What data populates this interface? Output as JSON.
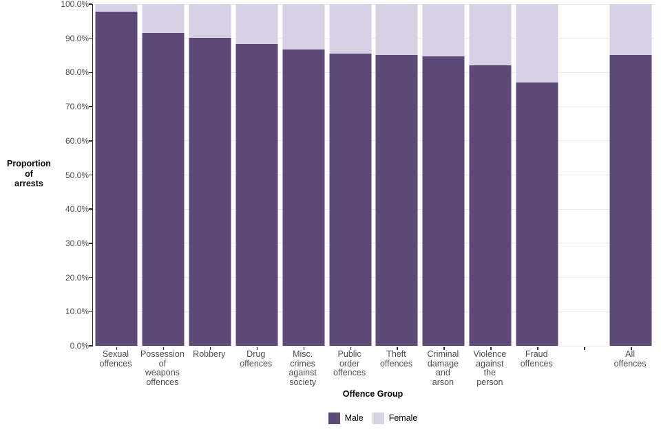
{
  "chart_data": {
    "type": "bar",
    "stacked": true,
    "orientation": "vertical",
    "title": "",
    "xlabel": "Offence Group",
    "ylabel": "Proportion\nof\narrests",
    "ylim": [
      0,
      100
    ],
    "grid": "horizontal",
    "legend_position": "bottom-center",
    "gap_slot_index": 10,
    "categories": [
      "Sexual\noffences",
      "Possession\nof\nweapons\noffences",
      "Robbery",
      "Drug\noffences",
      "Misc.\ncrimes\nagainst\nsociety",
      "Public\norder\noffences",
      "Theft\noffences",
      "Criminal\ndamage\nand\narson",
      "Violence\nagainst\nthe\nperson",
      "Fraud\noffences",
      "All\noffences"
    ],
    "series": [
      {
        "name": "Male",
        "color": "#5d4a76",
        "values": [
          97.7,
          91.6,
          90.1,
          88.4,
          86.7,
          85.6,
          85.1,
          84.8,
          82.1,
          77.0,
          85.1
        ]
      },
      {
        "name": "Female",
        "color": "#d8d0e4",
        "values": [
          2.3,
          8.4,
          9.9,
          11.6,
          13.3,
          14.4,
          14.9,
          15.2,
          17.9,
          23.0,
          14.9
        ]
      }
    ],
    "yticks": [
      {
        "value": 0,
        "label": "0.0%"
      },
      {
        "value": 10,
        "label": "10.0%"
      },
      {
        "value": 20,
        "label": "20.0%"
      },
      {
        "value": 30,
        "label": "30.0%"
      },
      {
        "value": 40,
        "label": "40.0%"
      },
      {
        "value": 50,
        "label": "50.0%"
      },
      {
        "value": 60,
        "label": "60.0%"
      },
      {
        "value": 70,
        "label": "70.0%"
      },
      {
        "value": 80,
        "label": "80.0%"
      },
      {
        "value": 90,
        "label": "90.0%"
      },
      {
        "value": 100,
        "label": "100.0%"
      }
    ],
    "colors": {
      "male": "#5d4a76",
      "female": "#d8d0e4",
      "gridline": "#ebebeb",
      "axis_line": "#2b2b2b",
      "tick_label": "#4d4d4d",
      "axis_title": "#000000"
    }
  },
  "legend": {
    "items": [
      {
        "label": "Male",
        "color": "#5d4a76"
      },
      {
        "label": "Female",
        "color": "#d8d0e4"
      }
    ]
  }
}
